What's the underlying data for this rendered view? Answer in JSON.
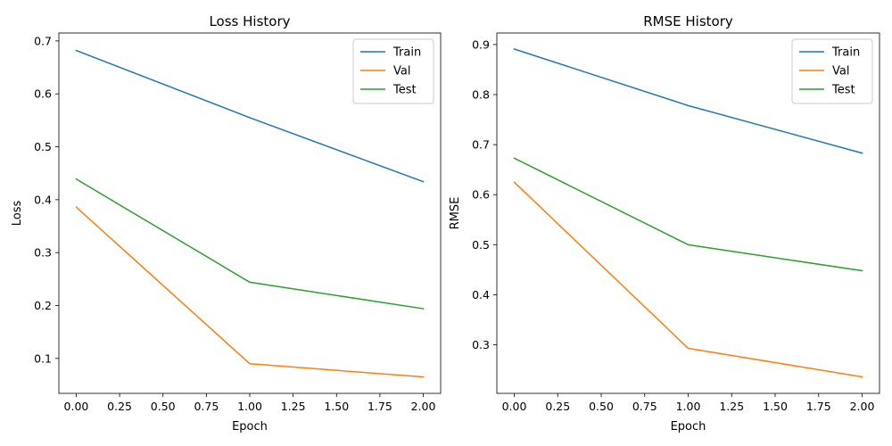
{
  "chart_data": [
    {
      "type": "line",
      "title": "Loss History",
      "xlabel": "Epoch",
      "ylabel": "Loss",
      "xlim": [
        -0.1,
        2.1
      ],
      "ylim": [
        0.034,
        0.715
      ],
      "x_ticks": [
        "0.00",
        "0.25",
        "0.50",
        "0.75",
        "1.00",
        "1.25",
        "1.50",
        "1.75",
        "2.00"
      ],
      "y_ticks": [
        "0.1",
        "0.2",
        "0.3",
        "0.4",
        "0.5",
        "0.6",
        "0.7"
      ],
      "grid": false,
      "legend": "top-right",
      "x": [
        0,
        1,
        2
      ],
      "series": [
        {
          "name": "Train",
          "color": "#1f77b4",
          "values": [
            0.682,
            0.555,
            0.434
          ]
        },
        {
          "name": "Val",
          "color": "#ff7f0e",
          "values": [
            0.386,
            0.09,
            0.065
          ]
        },
        {
          "name": "Test",
          "color": "#2ca02c",
          "values": [
            0.439,
            0.244,
            0.194
          ]
        }
      ]
    },
    {
      "type": "line",
      "title": "RMSE History",
      "xlabel": "Epoch",
      "ylabel": "RMSE",
      "xlim": [
        -0.1,
        2.1
      ],
      "ylim": [
        0.203,
        0.923
      ],
      "x_ticks": [
        "0.00",
        "0.25",
        "0.50",
        "0.75",
        "1.00",
        "1.25",
        "1.50",
        "1.75",
        "2.00"
      ],
      "y_ticks": [
        "0.3",
        "0.4",
        "0.5",
        "0.6",
        "0.7",
        "0.8",
        "0.9"
      ],
      "grid": false,
      "legend": "top-right",
      "x": [
        0,
        1,
        2
      ],
      "series": [
        {
          "name": "Train",
          "color": "#1f77b4",
          "values": [
            0.891,
            0.778,
            0.683
          ]
        },
        {
          "name": "Val",
          "color": "#ff7f0e",
          "values": [
            0.625,
            0.293,
            0.236
          ]
        },
        {
          "name": "Test",
          "color": "#2ca02c",
          "values": [
            0.673,
            0.5,
            0.448
          ]
        }
      ]
    }
  ]
}
